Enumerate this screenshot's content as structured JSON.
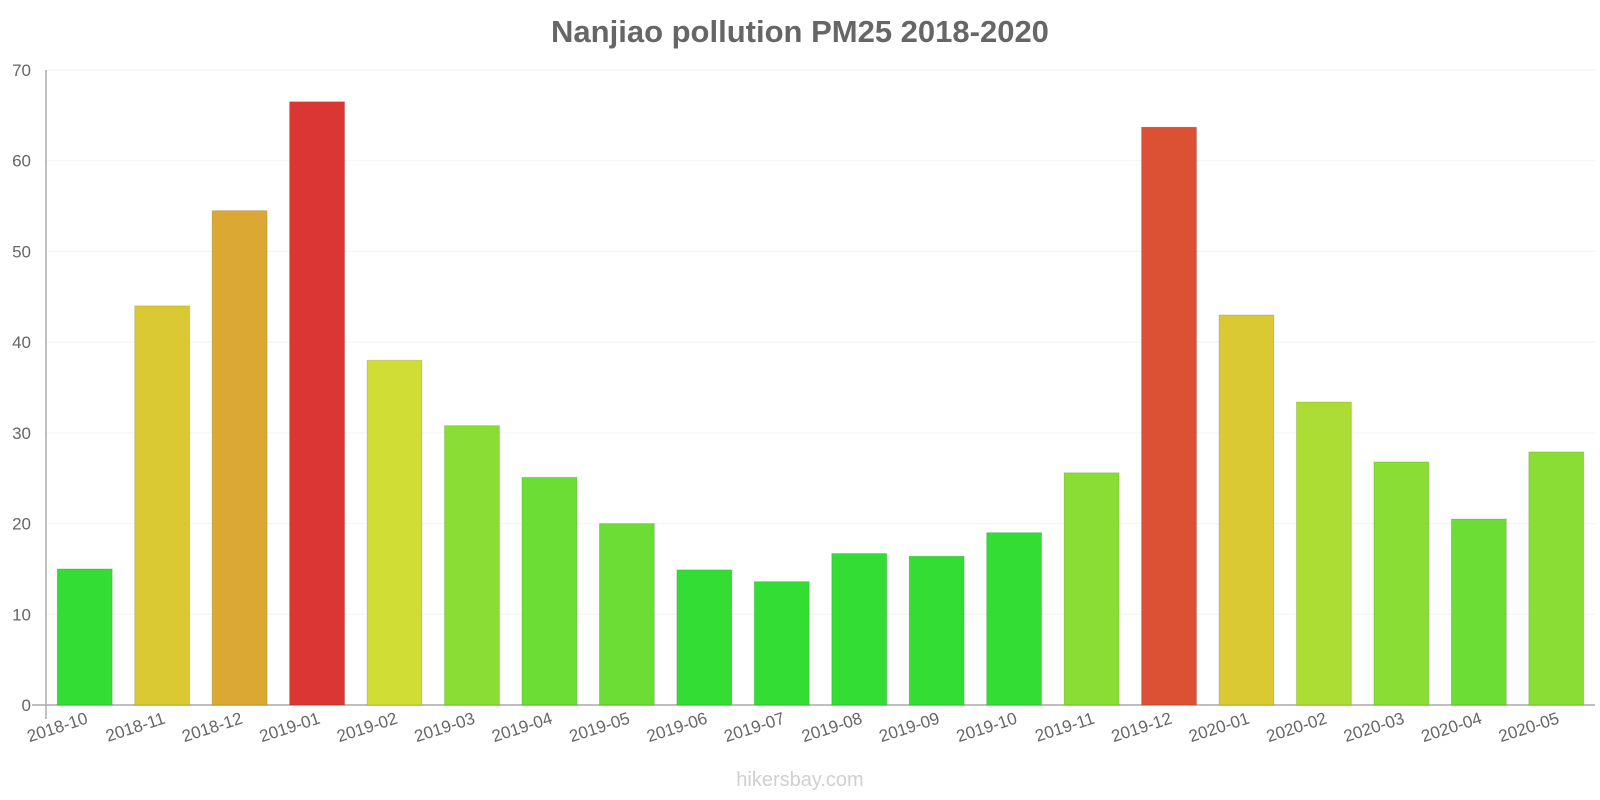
{
  "page": {
    "title": "Nanjiao pollution PM25 2018-2020",
    "watermark": "hikersbay.com"
  },
  "chart_data": {
    "type": "bar",
    "title": "Nanjiao pollution PM25 2018-2020",
    "xlabel": "",
    "ylabel": "",
    "ylim": [
      0,
      70
    ],
    "yticks": [
      0,
      10,
      20,
      30,
      40,
      50,
      60,
      70
    ],
    "grid": true,
    "legend": "none",
    "categories": [
      "2018-10",
      "2018-11",
      "2018-12",
      "2019-01",
      "2019-02",
      "2019-03",
      "2019-04",
      "2019-05",
      "2019-06",
      "2019-07",
      "2019-08",
      "2019-09",
      "2019-10",
      "2019-11",
      "2019-12",
      "2020-01",
      "2020-02",
      "2020-03",
      "2020-04",
      "2020-05"
    ],
    "values": [
      15,
      44,
      54.5,
      66.5,
      38,
      30.8,
      25.1,
      20,
      14.9,
      13.6,
      16.7,
      16.4,
      19,
      25.6,
      63.7,
      43,
      33.4,
      26.8,
      20.5,
      27.9
    ],
    "colors": [
      "#33dd33",
      "#dbc934",
      "#dba834",
      "#db3634",
      "#cfdd34",
      "#89dd34",
      "#6bdd34",
      "#6bdd34",
      "#33dd33",
      "#33dd33",
      "#33dd33",
      "#33dd33",
      "#33dd33",
      "#89dd34",
      "#dc5034",
      "#dbc934",
      "#abdd34",
      "#89dd34",
      "#6bdd34",
      "#89dd34"
    ]
  }
}
